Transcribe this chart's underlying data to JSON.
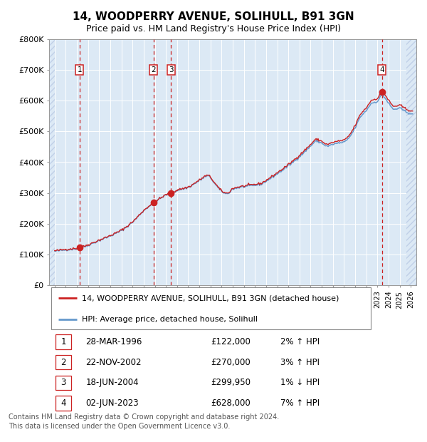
{
  "title1": "14, WOODPERRY AVENUE, SOLIHULL, B91 3GN",
  "title2": "Price paid vs. HM Land Registry's House Price Index (HPI)",
  "legend_line1": "14, WOODPERRY AVENUE, SOLIHULL, B91 3GN (detached house)",
  "legend_line2": "HPI: Average price, detached house, Solihull",
  "sales": [
    {
      "num": 1,
      "date_label": "28-MAR-1996",
      "date_x": 1996.24,
      "price": 122000,
      "pct": "2%",
      "dir": "↑"
    },
    {
      "num": 2,
      "date_label": "22-NOV-2002",
      "date_x": 2002.89,
      "price": 270000,
      "pct": "3%",
      "dir": "↑"
    },
    {
      "num": 3,
      "date_label": "18-JUN-2004",
      "date_x": 2004.46,
      "price": 299950,
      "pct": "1%",
      "dir": "↓"
    },
    {
      "num": 4,
      "date_label": "02-JUN-2023",
      "date_x": 2023.42,
      "price": 628000,
      "pct": "7%",
      "dir": "↑"
    }
  ],
  "table_rows": [
    {
      "num": 1,
      "date": "28-MAR-1996",
      "price": "£122,000",
      "pct": "2% ↑ HPI"
    },
    {
      "num": 2,
      "date": "22-NOV-2002",
      "price": "£270,000",
      "pct": "3% ↑ HPI"
    },
    {
      "num": 3,
      "date": "18-JUN-2004",
      "price": "£299,950",
      "pct": "1% ↓ HPI"
    },
    {
      "num": 4,
      "date": "02-JUN-2023",
      "price": "£628,000",
      "pct": "7% ↑ HPI"
    }
  ],
  "ylabel_ticks": [
    "£0",
    "£100K",
    "£200K",
    "£300K",
    "£400K",
    "£500K",
    "£600K",
    "£700K",
    "£800K"
  ],
  "ytick_vals": [
    0,
    100000,
    200000,
    300000,
    400000,
    500000,
    600000,
    700000,
    800000
  ],
  "xmin": 1993.5,
  "xmax": 2026.5,
  "ymin": 0,
  "ymax": 800000,
  "bg_color": "#dce9f5",
  "hatch_color": "#c0d0e8",
  "grid_color": "#ffffff",
  "hpi_line_color": "#6699cc",
  "sale_line_color": "#cc2222",
  "sale_dot_color": "#cc2222",
  "vline_color": "#cc2222",
  "footer": "Contains HM Land Registry data © Crown copyright and database right 2024.\nThis data is licensed under the Open Government Licence v3.0."
}
